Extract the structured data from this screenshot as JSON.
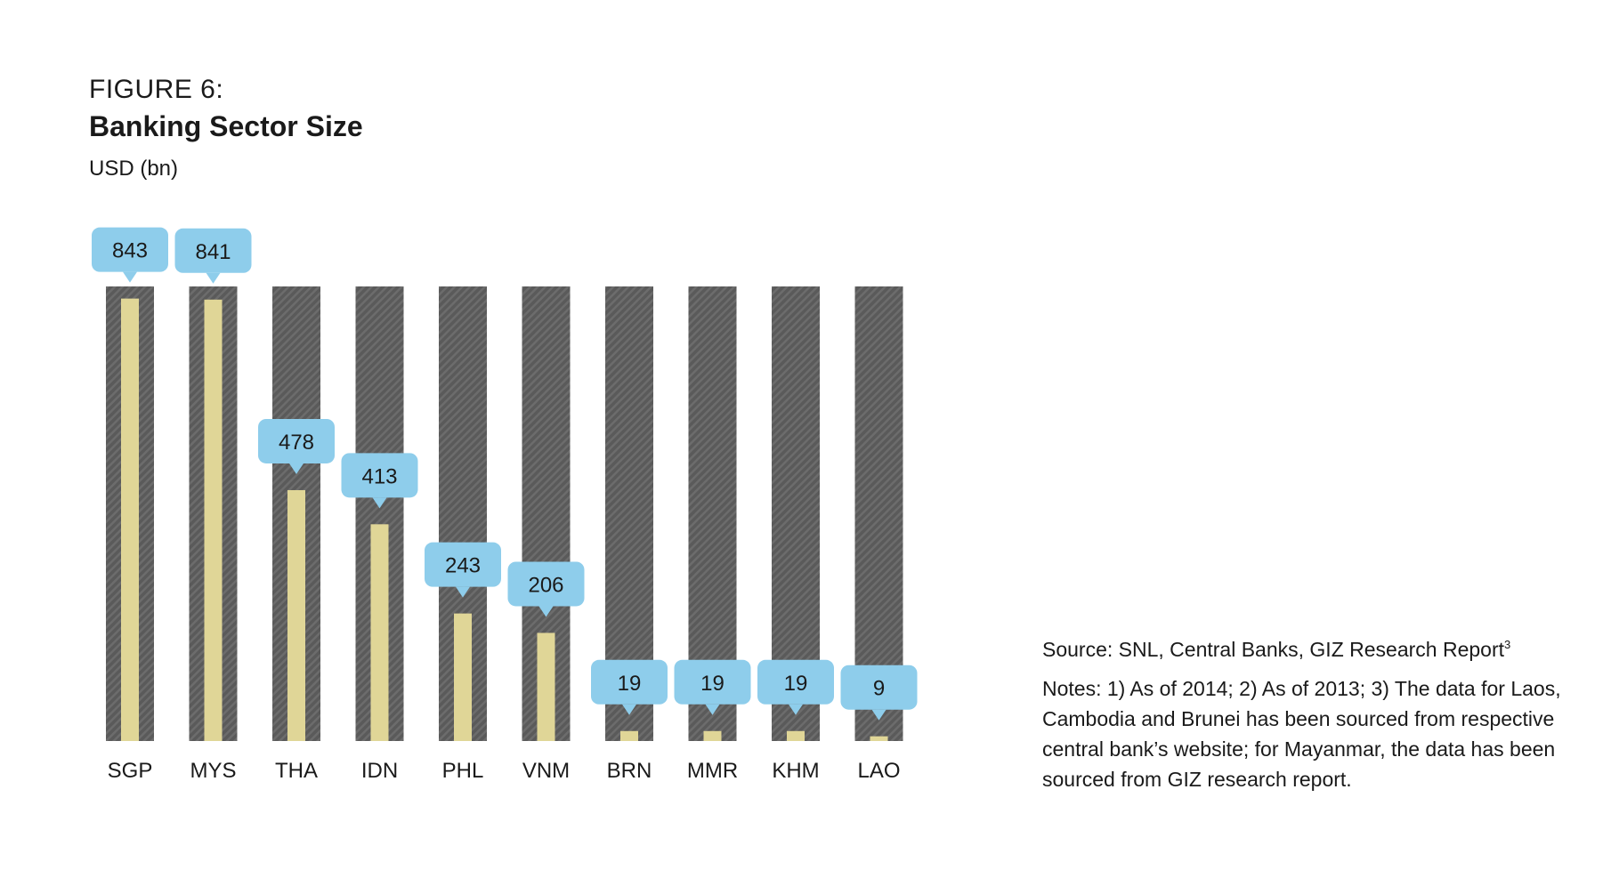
{
  "figure": {
    "label": "FIGURE 6:",
    "title": "Banking Sector Size",
    "unit": "USD (bn)"
  },
  "notes": {
    "source": "Source: SNL, Central Banks, GIZ Research Report",
    "source_superscript": "3",
    "notes_text": "Notes: 1) As of 2014; 2) As of 2013; 3) The data for Laos, Cambodia and Brunei has been sourced from respective central bank’s website; for Mayanmar, the data has been sourced from GIZ research report."
  },
  "colors": {
    "track": "#5e5e5e",
    "bar": "#e0d697",
    "callout": "#8ecdeb",
    "text": "#1a1a1a"
  },
  "chart_data": {
    "type": "bar",
    "categories": [
      "SGP",
      "MYS",
      "THA",
      "IDN",
      "PHL",
      "VNM",
      "BRN",
      "MMR",
      "KHM",
      "LAO"
    ],
    "values": [
      843,
      841,
      478,
      413,
      243,
      206,
      19,
      19,
      19,
      9
    ],
    "title": "Banking Sector Size",
    "xlabel": "",
    "ylabel": "USD (bn)",
    "ylim": [
      0,
      900
    ],
    "grid": false,
    "data_labels": true
  }
}
